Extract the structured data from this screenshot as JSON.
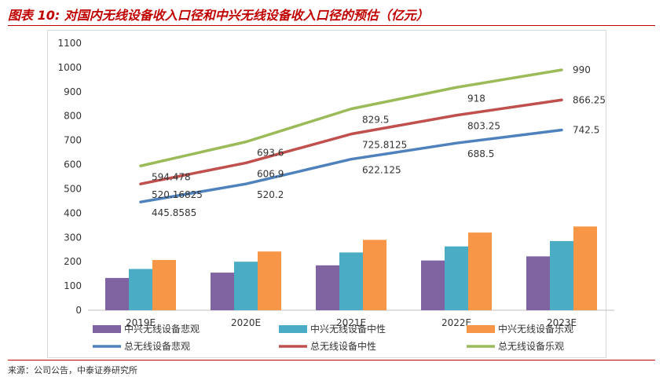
{
  "title": "图表 10: 对国内无线设备收入口径和中兴无线设备收入口径的预估（亿元）",
  "source": "来源：公司公告，中泰证券研究所",
  "chart_data": {
    "type": "bar+line",
    "categories": [
      "2019E",
      "2020E",
      "2021E",
      "2022E",
      "2023E"
    ],
    "ylim": [
      0,
      1100
    ],
    "yticks": [
      0,
      100,
      200,
      300,
      400,
      500,
      600,
      700,
      800,
      900,
      1000,
      1100
    ],
    "grid": false,
    "legend_position": "bottom",
    "bar_series": [
      {
        "name": "中兴无线设备悲观",
        "color": "#8064a2",
        "values": [
          133,
          155,
          185,
          205,
          222
        ]
      },
      {
        "name": "中兴无线设备中性",
        "color": "#4bacc6",
        "values": [
          170,
          200,
          238,
          263,
          285
        ]
      },
      {
        "name": "中兴无线设备乐观",
        "color": "#f79646",
        "values": [
          207,
          242,
          290,
          320,
          345
        ]
      }
    ],
    "line_series": [
      {
        "name": "总无线设备悲观",
        "color": "#4f81bd",
        "values": [
          445.8585,
          520.2,
          622.125,
          688.5,
          742.5
        ],
        "labels": [
          "445.8585",
          "520.2",
          "622.125",
          "688.5",
          "742.5"
        ]
      },
      {
        "name": "总无线设备中性",
        "color": "#c0504d",
        "values": [
          520.16825,
          606.9,
          725.8125,
          803.25,
          866.25
        ],
        "labels": [
          "520.16825",
          "606.9",
          "725.8125",
          "803.25",
          "866.25"
        ]
      },
      {
        "name": "总无线设备乐观",
        "color": "#9bbb59",
        "values": [
          594.478,
          693.6,
          829.5,
          918,
          990
        ],
        "labels": [
          "594.478",
          "693.6",
          "829.5",
          "918",
          "990"
        ]
      }
    ]
  }
}
